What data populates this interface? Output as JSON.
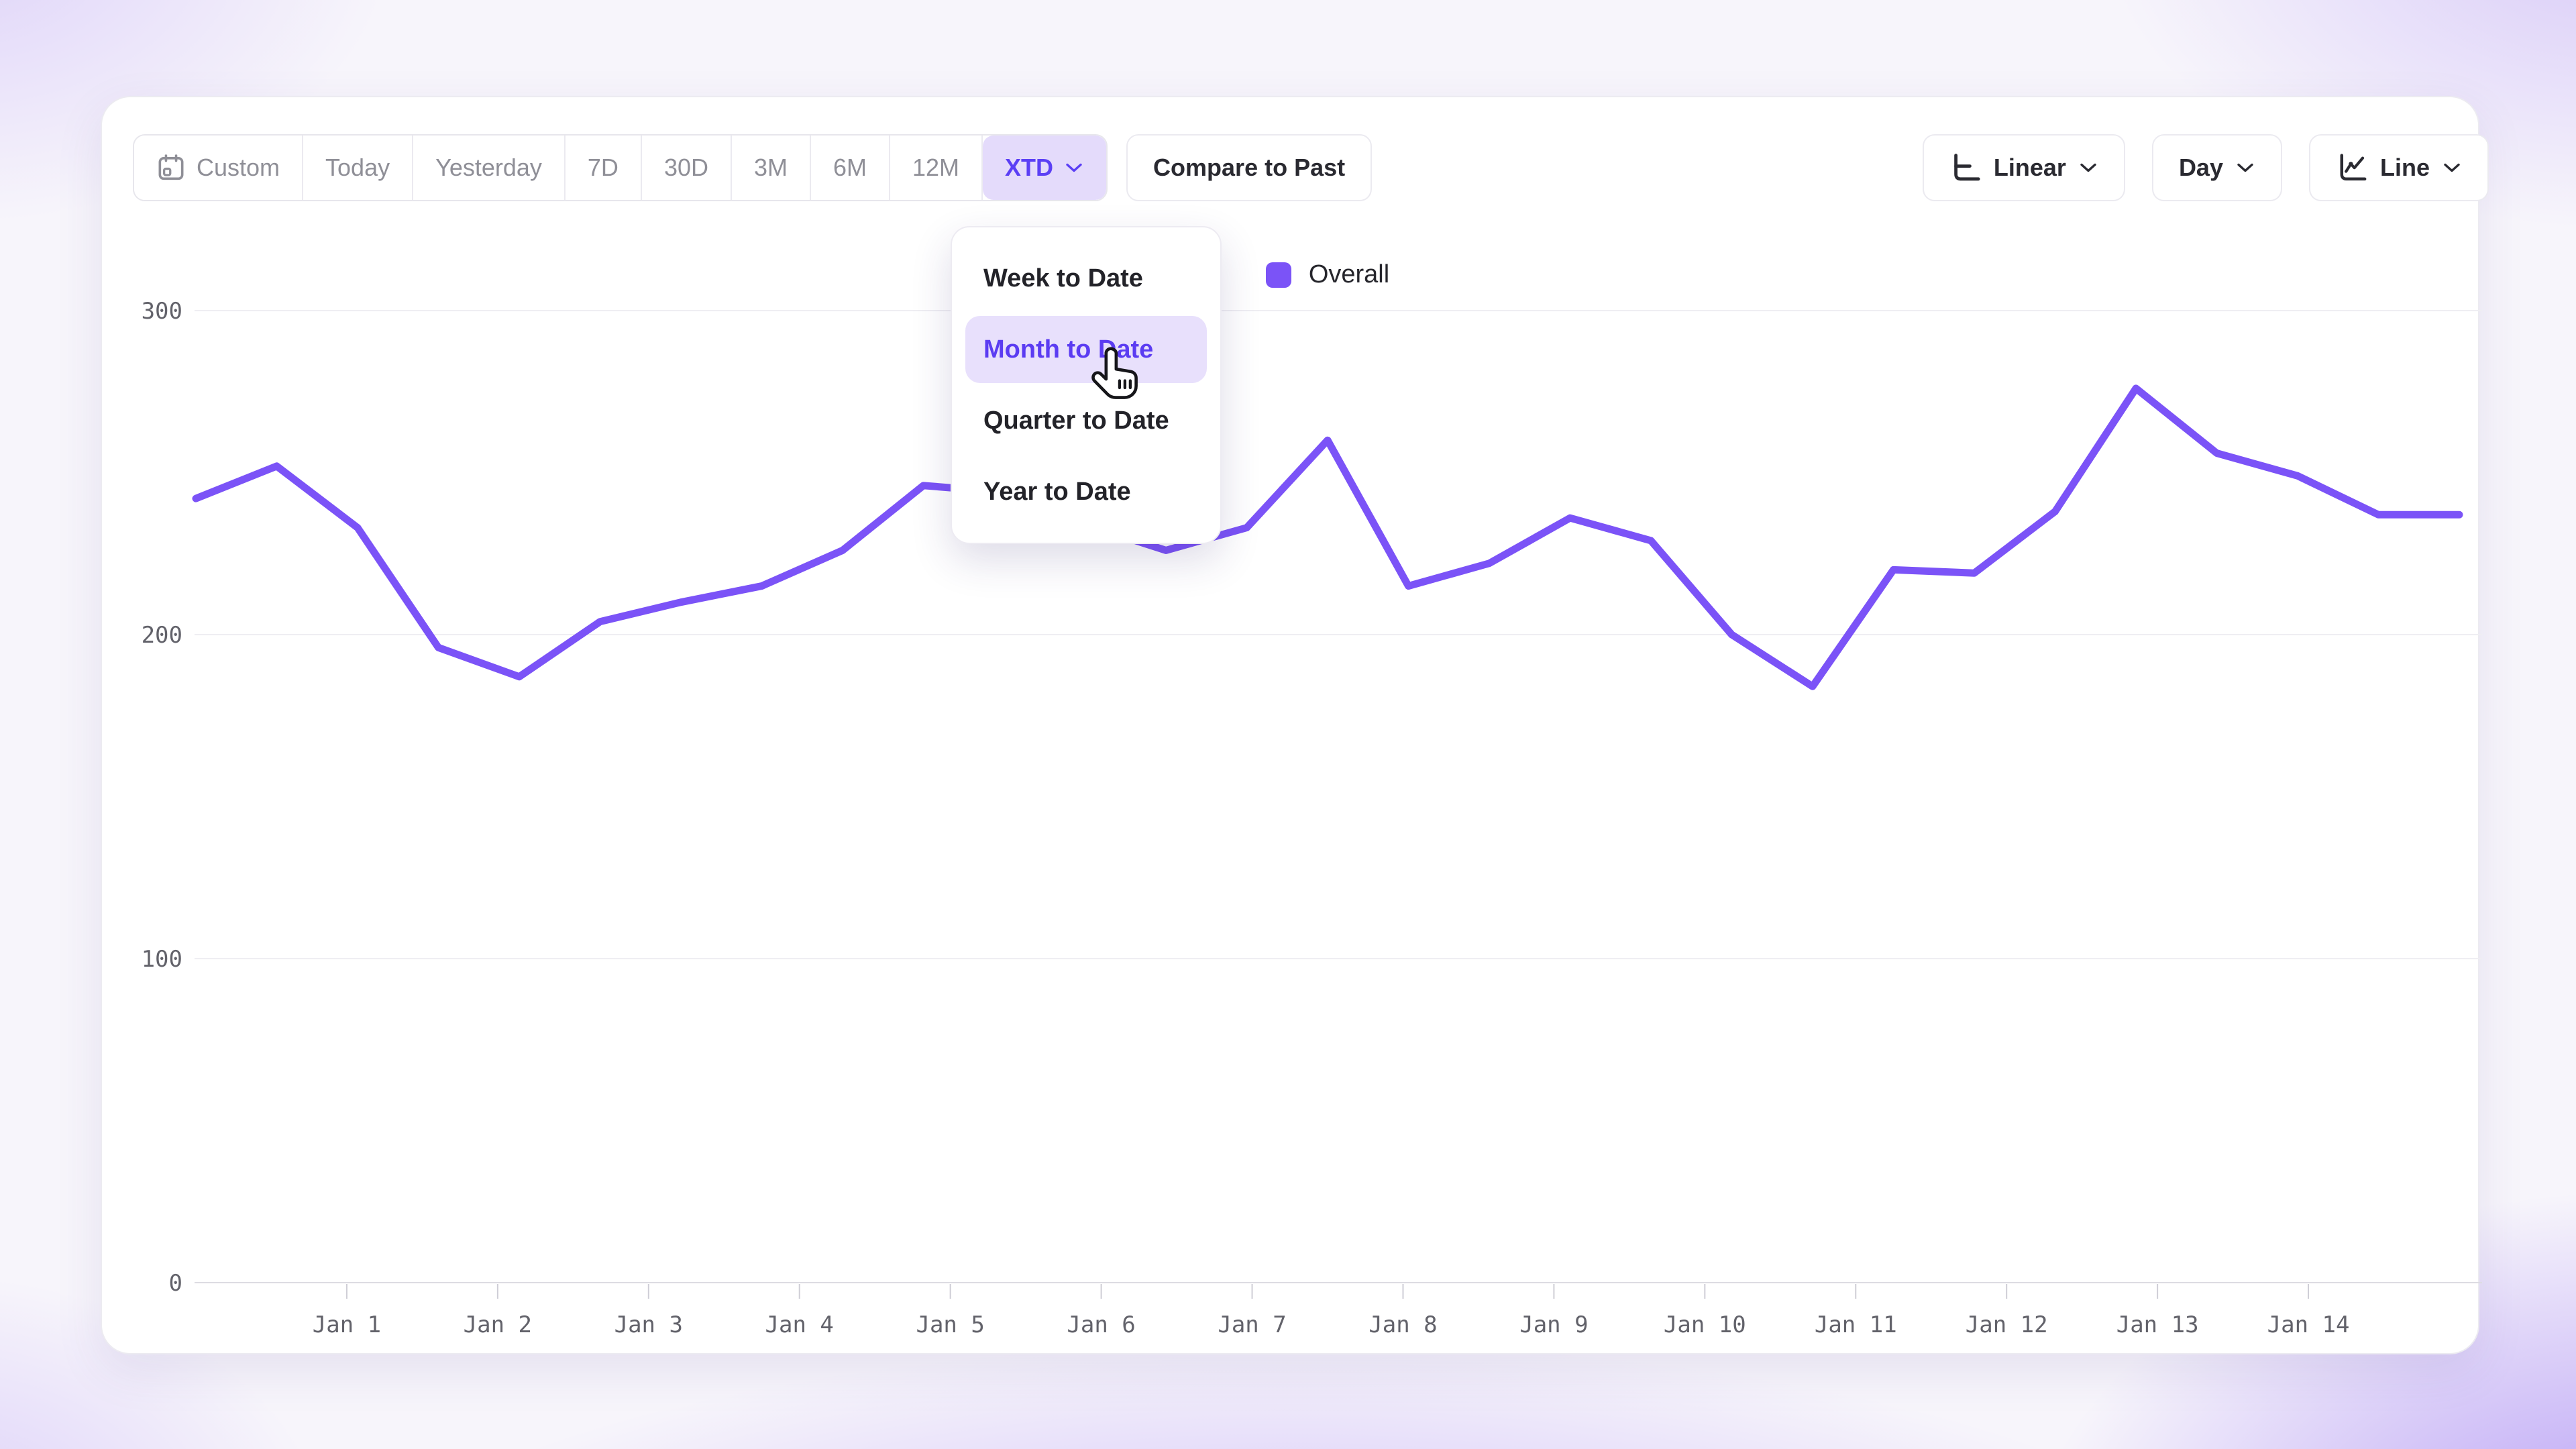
{
  "colors": {
    "accent": "#7B53F7",
    "accent_light_bg": "#E4DBFB",
    "accent_text": "#5B3FF5",
    "muted_text": "#8F8F97",
    "dark_text": "#2A2A31",
    "grid": "#EFEEF2",
    "axis_line": "#DDDCE2",
    "tick": "#CFCED6",
    "axis_text": "#62626A"
  },
  "toolbar": {
    "range_buttons": [
      {
        "label": "Custom",
        "icon": "calendar",
        "selected": false
      },
      {
        "label": "Today",
        "selected": false
      },
      {
        "label": "Yesterday",
        "selected": false
      },
      {
        "label": "7D",
        "selected": false
      },
      {
        "label": "30D",
        "selected": false
      },
      {
        "label": "3M",
        "selected": false
      },
      {
        "label": "6M",
        "selected": false
      },
      {
        "label": "12M",
        "selected": false
      },
      {
        "label": "XTD",
        "selected": true,
        "chevron": true
      }
    ],
    "compare_label": "Compare to Past",
    "right_buttons": [
      {
        "label": "Linear",
        "icon": "linear-axis",
        "chevron": true
      },
      {
        "label": "Day",
        "chevron": true
      },
      {
        "label": "Line",
        "icon": "line-chart",
        "chevron": true
      }
    ]
  },
  "dropdown": {
    "items": [
      {
        "label": "Week to Date",
        "selected": false
      },
      {
        "label": "Month to Date",
        "selected": true
      },
      {
        "label": "Quarter to Date",
        "selected": false
      },
      {
        "label": "Year to Date",
        "selected": false
      }
    ]
  },
  "legend": {
    "label": "Overall",
    "color": "#7B53F7"
  },
  "chart_data": {
    "type": "line",
    "title": "",
    "xlabel": "",
    "ylabel": "",
    "series": [
      {
        "name": "Overall",
        "color": "#7B53F7",
        "values": [
          242,
          252,
          233,
          196,
          187,
          204,
          210,
          215,
          226,
          246,
          244,
          234,
          226,
          233,
          260,
          215,
          222,
          236,
          229,
          200,
          184,
          220,
          219,
          238,
          276,
          256,
          249,
          237,
          237
        ]
      }
    ],
    "x_tick_labels": [
      "Jan 1",
      "Jan 2",
      "Jan 3",
      "Jan 4",
      "Jan 5",
      "Jan 6",
      "Jan 7",
      "Jan 8",
      "Jan 9",
      "Jan 10",
      "Jan 11",
      "Jan 12",
      "Jan 13",
      "Jan 14"
    ],
    "x_span_days": 15,
    "points_count": 29,
    "y_ticks": [
      0,
      100,
      200,
      300
    ],
    "ylim": [
      0,
      320
    ],
    "grid": "horizontal",
    "legend_position": "top-center"
  }
}
